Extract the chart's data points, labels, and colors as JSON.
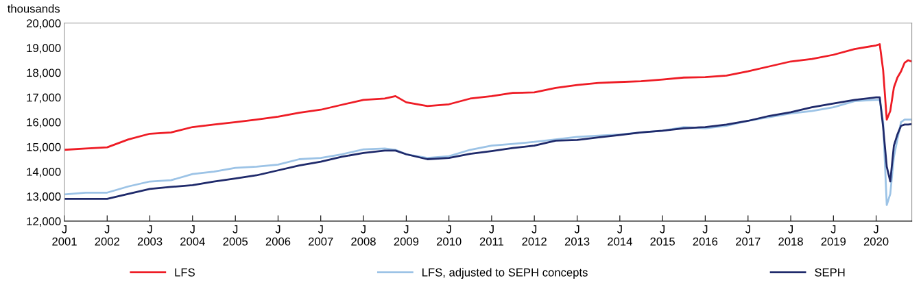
{
  "chart_data": {
    "type": "line",
    "ylabel": "thousands",
    "x": [
      "2001-01",
      "2001-07",
      "2002-01",
      "2002-07",
      "2003-01",
      "2003-07",
      "2004-01",
      "2004-07",
      "2005-01",
      "2005-07",
      "2006-01",
      "2006-07",
      "2007-01",
      "2007-07",
      "2008-01",
      "2008-07",
      "2008-10",
      "2009-01",
      "2009-07",
      "2010-01",
      "2010-07",
      "2011-01",
      "2011-07",
      "2012-01",
      "2012-07",
      "2013-01",
      "2013-07",
      "2014-01",
      "2014-07",
      "2015-01",
      "2015-07",
      "2016-01",
      "2016-07",
      "2017-01",
      "2017-07",
      "2018-01",
      "2018-07",
      "2019-01",
      "2019-07",
      "2020-01",
      "2020-02",
      "2020-03",
      "2020-04",
      "2020-05",
      "2020-06",
      "2020-07",
      "2020-08",
      "2020-09",
      "2020-10",
      "2020-11"
    ],
    "series": [
      {
        "name": "LFS",
        "color": "#ee1c25",
        "values": [
          14880,
          14930,
          14980,
          15300,
          15530,
          15580,
          15800,
          15900,
          16000,
          16100,
          16220,
          16380,
          16500,
          16700,
          16900,
          16950,
          17050,
          16800,
          16650,
          16720,
          16950,
          17050,
          17180,
          17200,
          17380,
          17500,
          17580,
          17620,
          17650,
          17720,
          17800,
          17820,
          17880,
          18050,
          18250,
          18450,
          18550,
          18720,
          18950,
          19100,
          19150,
          18100,
          16100,
          16450,
          17400,
          17800,
          18050,
          18400,
          18500,
          18450
        ]
      },
      {
        "name": "LFS, adjusted to SEPH concepts",
        "color": "#9cc3e6",
        "values": [
          13080,
          13150,
          13150,
          13400,
          13600,
          13650,
          13900,
          14000,
          14150,
          14200,
          14280,
          14500,
          14550,
          14700,
          14900,
          14930,
          14880,
          14700,
          14550,
          14620,
          14880,
          15050,
          15120,
          15200,
          15300,
          15400,
          15450,
          15500,
          15580,
          15650,
          15800,
          15750,
          15850,
          16050,
          16200,
          16350,
          16450,
          16600,
          16850,
          16900,
          16900,
          16000,
          12650,
          13100,
          14600,
          15300,
          16000,
          16100,
          16100,
          16100
        ]
      },
      {
        "name": "SEPH",
        "color": "#1f2a6b",
        "values": [
          12900,
          12900,
          12900,
          13100,
          13300,
          13380,
          13450,
          13600,
          13720,
          13850,
          14050,
          14250,
          14400,
          14600,
          14750,
          14850,
          14850,
          14700,
          14500,
          14550,
          14720,
          14830,
          14950,
          15050,
          15250,
          15280,
          15380,
          15480,
          15580,
          15650,
          15750,
          15800,
          15900,
          16050,
          16250,
          16400,
          16600,
          16750,
          16900,
          17000,
          17000,
          15800,
          14200,
          13600,
          15050,
          15500,
          15850,
          15900,
          15900,
          15920
        ]
      }
    ],
    "xlim": [
      "2001-01",
      "2020-11"
    ],
    "xticks": [
      {
        "value": "2001-01",
        "label": "J\n2001"
      },
      {
        "value": "2002-01",
        "label": "J\n2002"
      },
      {
        "value": "2003-01",
        "label": "J\n2003"
      },
      {
        "value": "2004-01",
        "label": "J\n2004"
      },
      {
        "value": "2005-01",
        "label": "J\n2005"
      },
      {
        "value": "2006-01",
        "label": "J\n2006"
      },
      {
        "value": "2007-01",
        "label": "J\n2007"
      },
      {
        "value": "2008-01",
        "label": "J\n2008"
      },
      {
        "value": "2009-01",
        "label": "J\n2009"
      },
      {
        "value": "2010-01",
        "label": "J\n2010"
      },
      {
        "value": "2011-01",
        "label": "J\n2011"
      },
      {
        "value": "2012-01",
        "label": "J\n2012"
      },
      {
        "value": "2013-01",
        "label": "J\n2013"
      },
      {
        "value": "2014-01",
        "label": "J\n2014"
      },
      {
        "value": "2015-01",
        "label": "J\n2015"
      },
      {
        "value": "2016-01",
        "label": "J\n2016"
      },
      {
        "value": "2017-01",
        "label": "J\n2017"
      },
      {
        "value": "2018-01",
        "label": "J\n2018"
      },
      {
        "value": "2019-01",
        "label": "J\n2019"
      },
      {
        "value": "2020-01",
        "label": "J\n2020"
      }
    ],
    "ylim": [
      12000,
      20000
    ],
    "yticks": [
      {
        "value": 12000,
        "label": "12,000"
      },
      {
        "value": 13000,
        "label": "13,000"
      },
      {
        "value": 14000,
        "label": "14,000"
      },
      {
        "value": 15000,
        "label": "15,000"
      },
      {
        "value": 16000,
        "label": "16,000"
      },
      {
        "value": 17000,
        "label": "17,000"
      },
      {
        "value": 18000,
        "label": "18,000"
      },
      {
        "value": 19000,
        "label": "19,000"
      },
      {
        "value": 20000,
        "label": "20,000"
      }
    ],
    "grid": false,
    "legend": "bottom"
  }
}
